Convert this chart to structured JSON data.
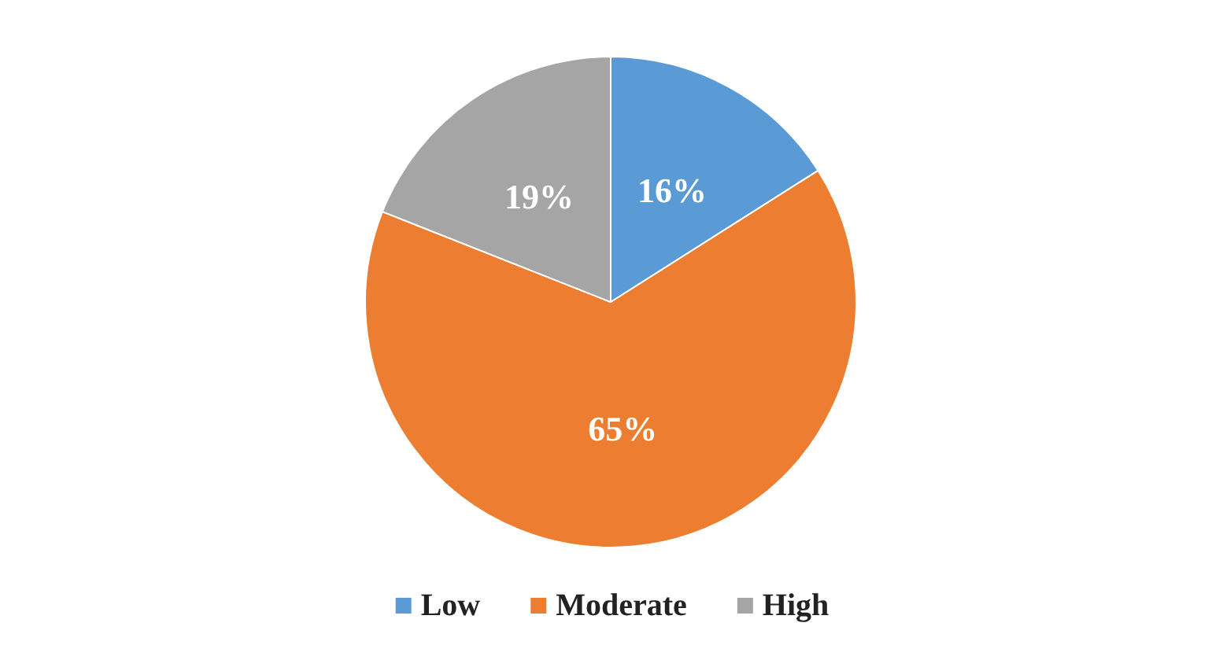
{
  "chart_data": {
    "type": "pie",
    "categories": [
      "Low",
      "Moderate",
      "High"
    ],
    "values": [
      16,
      65,
      19
    ],
    "colors": [
      "#5b9bd5",
      "#ed7d31",
      "#a5a5a5"
    ],
    "value_labels": [
      "16%",
      "65%",
      "19%"
    ],
    "legend": "bottom"
  }
}
